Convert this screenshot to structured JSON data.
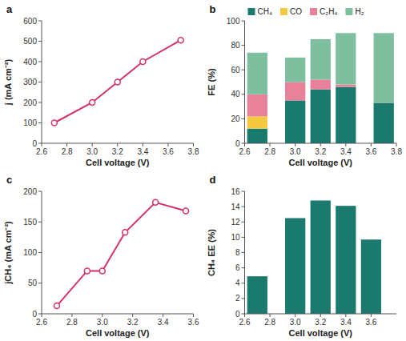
{
  "chart_data": [
    {
      "type": "line",
      "title": "a",
      "xlabel": "Cell voltage (V)",
      "ylabel": "j (mA cm⁻²)",
      "x": [
        2.7,
        3.0,
        3.2,
        3.4,
        3.7
      ],
      "values": [
        100,
        200,
        300,
        400,
        505
      ],
      "color": "#d4316c",
      "marker": "circle",
      "xlim": [
        2.6,
        3.8
      ],
      "ylim": [
        0,
        600
      ],
      "xticks": [
        2.6,
        2.8,
        {
          "value": 3.0,
          "label": "3.0"
        },
        3.2,
        3.4,
        3.6,
        3.8
      ],
      "yticks": [
        0,
        100,
        200,
        300,
        400,
        500,
        600
      ],
      "grid": false
    },
    {
      "type": "bar",
      "stacked": true,
      "title": "b",
      "xlabel": "Cell voltage (V)",
      "ylabel": "FE (%)",
      "x": [
        2.7,
        3.0,
        3.2,
        3.4,
        3.7
      ],
      "series": [
        {
          "name": "CH₄",
          "color": "#1a7a6e",
          "values": [
            12,
            35,
            44,
            46,
            33
          ]
        },
        {
          "name": "CO",
          "color": "#f5c842",
          "values": [
            10,
            0,
            0,
            0,
            0
          ]
        },
        {
          "name": "C₂H₄",
          "color": "#e8829a",
          "values": [
            18,
            15,
            8,
            2,
            0
          ]
        },
        {
          "name": "H₂",
          "color": "#7dbf9e",
          "values": [
            34,
            20,
            33,
            42,
            57
          ]
        }
      ],
      "legend": "upper left",
      "xlim": [
        2.6,
        3.8
      ],
      "ylim": [
        0,
        100
      ],
      "xticks": [
        2.6,
        2.8,
        {
          "value": 3.0,
          "label": "3.0"
        },
        3.2,
        3.4,
        3.6,
        3.8
      ],
      "yticks": [
        0,
        20,
        40,
        60,
        80,
        100
      ],
      "grid": false
    },
    {
      "type": "line",
      "title": "c",
      "xlabel": "Cell voltage (V)",
      "ylabel": "jCH₄ (mA cm⁻²)",
      "x": [
        2.7,
        2.9,
        3.0,
        3.15,
        3.35,
        3.55
      ],
      "values": [
        13,
        70,
        70,
        133,
        182,
        168
      ],
      "color": "#d4316c",
      "marker": "circle",
      "xlim": [
        2.6,
        3.6
      ],
      "ylim": [
        0,
        200
      ],
      "xticks": [
        2.6,
        2.8,
        {
          "value": 3.0,
          "label": "3.0"
        },
        3.2,
        3.4,
        3.6
      ],
      "yticks": [
        0,
        50,
        100,
        150,
        200
      ],
      "grid": false
    },
    {
      "type": "bar",
      "title": "d",
      "xlabel": "Cell voltage (V)",
      "ylabel": "CH₄ EE (%)",
      "x": [
        2.7,
        3.0,
        3.2,
        3.4,
        3.6
      ],
      "values": [
        4.9,
        12.5,
        14.8,
        14.1,
        9.7
      ],
      "color": "#1a7a6e",
      "xlim": [
        2.6,
        3.8
      ],
      "ylim": [
        0,
        16
      ],
      "xticks": [
        2.6,
        2.8,
        {
          "value": 3.0,
          "label": "3.0"
        },
        3.2,
        3.4,
        3.6
      ],
      "yticks": [
        0,
        2,
        4,
        6,
        8,
        10,
        12,
        14,
        16
      ],
      "grid": false
    }
  ]
}
